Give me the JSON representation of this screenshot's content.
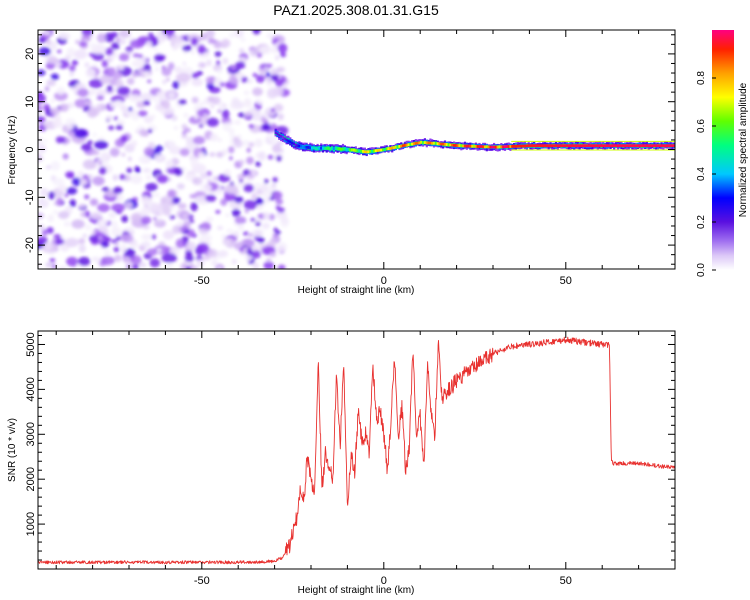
{
  "figure_title": "PAZ1.2025.308.01.31.G15",
  "colors": {
    "snr_line": "#e8312f",
    "axis": "#000000",
    "colormap": [
      "#ffffff",
      "#d8bff5",
      "#8c3cf0",
      "#5a10e0",
      "#0000ff",
      "#00c8ff",
      "#00ff80",
      "#60ff00",
      "#ffff00",
      "#ffa000",
      "#ff2000",
      "#ff0080"
    ]
  },
  "chart_data": [
    {
      "type": "heatmap",
      "name": "spectrogram",
      "title": "PAZ1.2025.308.01.31.G15",
      "xlabel": "Height of straight line (km)",
      "ylabel": "Frequency (Hz)",
      "xlim": [
        -95,
        80
      ],
      "ylim": [
        -25,
        25
      ],
      "xticks": [
        -50,
        0,
        50
      ],
      "yticks": [
        -20,
        -10,
        0,
        10,
        20
      ],
      "noise_region_x": [
        -95,
        -27
      ],
      "signal_track": {
        "x": [
          -30,
          -27,
          -24,
          -20,
          -15,
          -10,
          -5,
          0,
          5,
          10,
          15,
          20,
          30,
          40,
          50,
          60,
          70,
          80
        ],
        "frequency": [
          3.5,
          2.0,
          0.8,
          0.3,
          0.2,
          0.0,
          -0.5,
          0.0,
          0.8,
          1.5,
          1.2,
          0.8,
          0.5,
          0.8,
          0.8,
          0.8,
          0.8,
          0.8
        ],
        "amplitude": [
          0.25,
          0.3,
          0.35,
          0.45,
          0.55,
          0.6,
          0.72,
          0.7,
          0.82,
          0.78,
          0.8,
          0.85,
          0.9,
          0.93,
          0.95,
          0.96,
          0.96,
          0.96
        ]
      },
      "colorbar": {
        "label": "Normalized spectral amplitude",
        "ticks": [
          "0.0",
          "0.2",
          "0.4",
          "0.6",
          "0.8"
        ],
        "range": [
          0,
          1
        ]
      }
    },
    {
      "type": "line",
      "name": "snr",
      "xlabel": "Height of straight line (km)",
      "ylabel": "SNR (10 * v/v)",
      "xlim": [
        -95,
        80
      ],
      "ylim": [
        0,
        5300
      ],
      "xticks": [
        -50,
        0,
        50
      ],
      "yticks": [
        1000,
        2000,
        3000,
        4000,
        5000
      ],
      "series": [
        {
          "name": "SNR",
          "x": [
            -95,
            -60,
            -40,
            -30,
            -28,
            -26,
            -24,
            -23,
            -22,
            -21,
            -20,
            -19,
            -18,
            -17,
            -16,
            -15,
            -14,
            -13,
            -12,
            -11,
            -10,
            -9,
            -8,
            -7,
            -6,
            -5,
            -4,
            -3,
            -2,
            -1,
            0,
            1,
            2,
            3,
            4,
            5,
            6,
            7,
            8,
            9,
            10,
            11,
            12,
            13,
            14,
            15,
            16,
            18,
            20,
            25,
            30,
            35,
            40,
            45,
            50,
            55,
            60,
            62,
            62.5,
            63,
            65,
            70,
            75,
            80
          ],
          "y": [
            150,
            150,
            150,
            170,
            250,
            500,
            1100,
            1800,
            1500,
            2500,
            2000,
            1700,
            4700,
            1800,
            2600,
            2300,
            2000,
            4400,
            2700,
            4650,
            1300,
            2500,
            2200,
            3500,
            2800,
            3000,
            2600,
            4550,
            3300,
            3500,
            3000,
            2200,
            3400,
            4700,
            3000,
            3600,
            2200,
            2700,
            4900,
            3000,
            3400,
            2200,
            4600,
            3500,
            3000,
            5000,
            3800,
            4000,
            4200,
            4500,
            4800,
            4950,
            5000,
            5050,
            5100,
            5050,
            5000,
            5000,
            2400,
            2350,
            2350,
            2350,
            2300,
            2250
          ]
        }
      ]
    }
  ]
}
